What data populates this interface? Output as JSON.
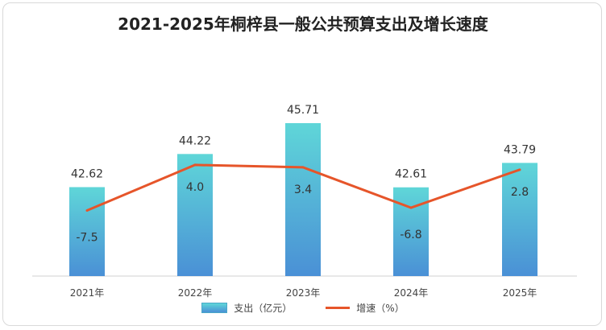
{
  "chart_data": {
    "type": "bar",
    "title": "2021-2025年桐梓县一般公共预算支出及增长速度",
    "categories": [
      "2021年",
      "2022年",
      "2023年",
      "2024年",
      "2025年"
    ],
    "series": [
      {
        "name": "支出（亿元）",
        "type": "bar",
        "values": [
          42.62,
          44.22,
          45.71,
          42.61,
          43.79
        ]
      },
      {
        "name": "增速（%）",
        "type": "line",
        "values": [
          -7.5,
          4.0,
          3.4,
          -6.8,
          2.8
        ]
      }
    ],
    "bar_labels": [
      "42.62",
      "44.22",
      "45.71",
      "42.61",
      "43.79"
    ],
    "line_labels": [
      "-7.5",
      "4.0",
      "3.4",
      "-6.8",
      "2.8"
    ],
    "legend_position": "bottom",
    "grid": false,
    "colors": {
      "bar_top": "#5fd6d8",
      "bar_bottom": "#4a90d6",
      "line": "#e6552a"
    }
  }
}
